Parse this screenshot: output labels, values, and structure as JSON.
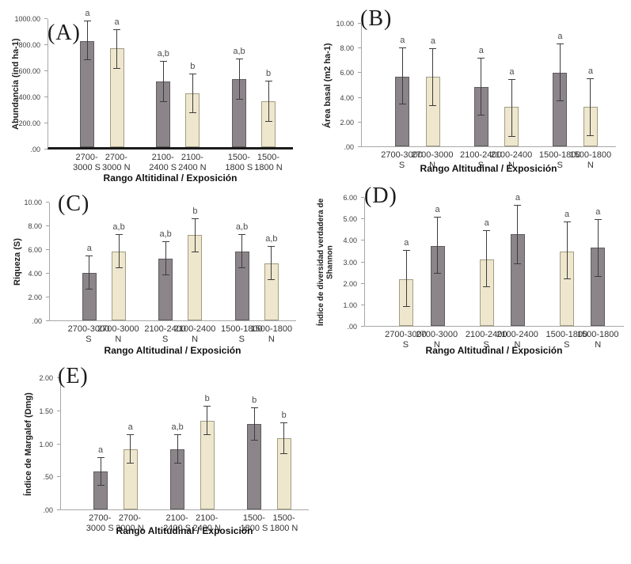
{
  "figure": {
    "background": "#ffffff",
    "panel_count": 5
  },
  "colors": {
    "bar_dark": "#8b858a",
    "bar_dark_border": "#605b5f",
    "bar_cream": "#eee7cd",
    "bar_cream_border": "#a39c83",
    "error_bar": "#3c3c3c",
    "sig_letter": "#4d4d4d",
    "axis": "#a8a8a8",
    "axis_thick": "#1a1a1a"
  },
  "chart_data": [
    {
      "type": "bar",
      "panel": "(A)",
      "ylabel": "Abundancia (ind ha-1)",
      "xlabel": "Rango Altitidinal / Exposición",
      "ylim": [
        0,
        1000
      ],
      "grid": false,
      "legend": null,
      "yticks": [
        {
          "value": 1000,
          "label": "1000.00"
        },
        {
          "value": 800,
          "label": "800.00"
        },
        {
          "value": 600,
          "label": "600.00"
        },
        {
          "value": 400,
          "label": "400.00"
        },
        {
          "value": 200,
          "label": "200.00"
        },
        {
          "value": 0,
          "label": ".00"
        }
      ],
      "bars": [
        {
          "category": "2700-3000 S",
          "label_lines": [
            "2700-",
            "3000 S"
          ],
          "value": 830,
          "err_low": 680,
          "err_high": 990,
          "letter": "a",
          "shade": "dark"
        },
        {
          "category": "2700-3000 N",
          "label_lines": [
            "2700-",
            "3000 N"
          ],
          "value": 770,
          "err_low": 610,
          "err_high": 920,
          "letter": "a",
          "shade": "cream"
        },
        {
          "category": "2100-2400 S",
          "label_lines": [
            "2100-",
            "2400 S"
          ],
          "value": 510,
          "err_low": 355,
          "err_high": 670,
          "letter": "a,b",
          "shade": "dark"
        },
        {
          "category": "2100-2400 N",
          "label_lines": [
            "2100-",
            "2400 N"
          ],
          "value": 420,
          "err_low": 265,
          "err_high": 575,
          "letter": "b",
          "shade": "cream"
        },
        {
          "category": "1500-1800 S",
          "label_lines": [
            "1500-",
            "1800 S"
          ],
          "value": 530,
          "err_low": 370,
          "err_high": 690,
          "letter": "a,b",
          "shade": "dark"
        },
        {
          "category": "1500-1800 N",
          "label_lines": [
            "1500-",
            "1800 N"
          ],
          "value": 360,
          "err_low": 200,
          "err_high": 520,
          "letter": "b",
          "shade": "cream"
        }
      ]
    },
    {
      "type": "bar",
      "panel": "(B)",
      "ylabel": "Área basal (m2 ha-1)",
      "xlabel": "Rango Altitudinal / Exposición",
      "ylim": [
        0,
        10
      ],
      "grid": false,
      "legend": null,
      "yticks": [
        {
          "value": 10,
          "label": "10.00"
        },
        {
          "value": 8,
          "label": "8.00"
        },
        {
          "value": 6,
          "label": "6.00"
        },
        {
          "value": 4,
          "label": "4.00"
        },
        {
          "value": 2,
          "label": "2.00"
        },
        {
          "value": 0,
          "label": ".00"
        }
      ],
      "bars": [
        {
          "category": "2700-3000 S",
          "label_lines": [
            "2700-3000",
            "S"
          ],
          "value": 5.7,
          "err_low": 3.4,
          "err_high": 8.05,
          "letter": "a",
          "shade": "dark"
        },
        {
          "category": "2700-3000 N",
          "label_lines": [
            "2700-3000",
            "N"
          ],
          "value": 5.65,
          "err_low": 3.3,
          "err_high": 8.0,
          "letter": "a",
          "shade": "cream"
        },
        {
          "category": "2100-2400 S",
          "label_lines": [
            "2100-2400",
            "S"
          ],
          "value": 4.85,
          "err_low": 2.5,
          "err_high": 7.2,
          "letter": "a",
          "shade": "dark"
        },
        {
          "category": "2100-2400 N",
          "label_lines": [
            "2100-2400",
            "N"
          ],
          "value": 3.2,
          "err_low": 0.8,
          "err_high": 5.5,
          "letter": "a",
          "shade": "cream"
        },
        {
          "category": "1500-1800 S",
          "label_lines": [
            "1500-1800",
            "S"
          ],
          "value": 6.0,
          "err_low": 3.65,
          "err_high": 8.4,
          "letter": "a",
          "shade": "dark"
        },
        {
          "category": "1500-1800 N",
          "label_lines": [
            "1500-1800",
            "N"
          ],
          "value": 3.25,
          "err_low": 0.85,
          "err_high": 5.55,
          "letter": "a",
          "shade": "cream"
        }
      ]
    },
    {
      "type": "bar",
      "panel": "(C)",
      "ylabel": "Riqueza (S)",
      "xlabel": "Rango Altitudinal / Exposición",
      "ylim": [
        0,
        10
      ],
      "grid": false,
      "legend": null,
      "yticks": [
        {
          "value": 10,
          "label": "10.00"
        },
        {
          "value": 8,
          "label": "8.00"
        },
        {
          "value": 6,
          "label": "6.00"
        },
        {
          "value": 4,
          "label": "4.00"
        },
        {
          "value": 2,
          "label": "2.00"
        },
        {
          "value": 0,
          "label": ".00"
        }
      ],
      "bars": [
        {
          "category": "2700-3000 S",
          "label_lines": [
            "2700-3000",
            "S"
          ],
          "value": 4.05,
          "err_low": 2.6,
          "err_high": 5.5,
          "letter": "a",
          "shade": "dark"
        },
        {
          "category": "2700-3000 N",
          "label_lines": [
            "2700-3000",
            "N"
          ],
          "value": 5.85,
          "err_low": 4.4,
          "err_high": 7.3,
          "letter": "a,b",
          "shade": "cream"
        },
        {
          "category": "2100-2400 S",
          "label_lines": [
            "2100-2400",
            "S"
          ],
          "value": 5.25,
          "err_low": 3.8,
          "err_high": 6.7,
          "letter": "a,b",
          "shade": "dark"
        },
        {
          "category": "2100-2400 N",
          "label_lines": [
            "2100-2400",
            "N"
          ],
          "value": 7.25,
          "err_low": 5.8,
          "err_high": 8.65,
          "letter": "b",
          "shade": "cream"
        },
        {
          "category": "1500-1800 S",
          "label_lines": [
            "1500-1800",
            "S"
          ],
          "value": 5.85,
          "err_low": 4.4,
          "err_high": 7.3,
          "letter": "a,b",
          "shade": "dark"
        },
        {
          "category": "1500-1800 N",
          "label_lines": [
            "1500-1800",
            "N"
          ],
          "value": 4.85,
          "err_low": 3.4,
          "err_high": 6.3,
          "letter": "a,b",
          "shade": "cream"
        }
      ]
    },
    {
      "type": "bar",
      "panel": "(D)",
      "ylabel": "Índice de diversidad verdadera de Shannon",
      "xlabel": "Rango Altitudinal / Exposición",
      "ylim": [
        0,
        6
      ],
      "grid": false,
      "legend": null,
      "yticks": [
        {
          "value": 6,
          "label": "6.00"
        },
        {
          "value": 5,
          "label": "5.00"
        },
        {
          "value": 4,
          "label": "4.00"
        },
        {
          "value": 3,
          "label": "3.00"
        },
        {
          "value": 2,
          "label": "2.00"
        },
        {
          "value": 1,
          "label": "1.00"
        },
        {
          "value": 0,
          "label": ".00"
        }
      ],
      "bars": [
        {
          "category": "2700-3000 S",
          "label_lines": [
            "2700-3000",
            "S"
          ],
          "value": 2.2,
          "err_low": 0.9,
          "err_high": 3.55,
          "letter": "a",
          "shade": "cream"
        },
        {
          "category": "2700-3000 N",
          "label_lines": [
            "2700-3000",
            "N"
          ],
          "value": 3.75,
          "err_low": 2.45,
          "err_high": 5.1,
          "letter": "a",
          "shade": "dark"
        },
        {
          "category": "2100-2400 S",
          "label_lines": [
            "2100-2400",
            "S"
          ],
          "value": 3.1,
          "err_low": 1.8,
          "err_high": 4.5,
          "letter": "a",
          "shade": "cream"
        },
        {
          "category": "2100-2400 N",
          "label_lines": [
            "2100-2400",
            "N"
          ],
          "value": 4.3,
          "err_low": 2.9,
          "err_high": 5.65,
          "letter": "a",
          "shade": "dark"
        },
        {
          "category": "1500-1800 S",
          "label_lines": [
            "1500-1800",
            "S"
          ],
          "value": 3.5,
          "err_low": 2.2,
          "err_high": 4.9,
          "letter": "a",
          "shade": "cream"
        },
        {
          "category": "1500-1800 N",
          "label_lines": [
            "1500-1800",
            "N"
          ],
          "value": 3.65,
          "err_low": 2.3,
          "err_high": 5.0,
          "letter": "a",
          "shade": "dark"
        }
      ]
    },
    {
      "type": "bar",
      "panel": "(E)",
      "ylabel": "Índice de Margalef (Dmg)",
      "xlabel": "Rango Altitudinal / Exposición",
      "ylim": [
        0,
        2
      ],
      "grid": false,
      "legend": null,
      "yticks": [
        {
          "value": 2,
          "label": "2.00"
        },
        {
          "value": 1.5,
          "label": "1.50"
        },
        {
          "value": 1,
          "label": "1.00"
        },
        {
          "value": 0.5,
          "label": ".50"
        },
        {
          "value": 0,
          "label": ".00"
        }
      ],
      "bars": [
        {
          "category": "2700-3000 S",
          "label_lines": [
            "2700-",
            "3000 S"
          ],
          "value": 0.58,
          "err_low": 0.36,
          "err_high": 0.8,
          "letter": "a",
          "shade": "dark"
        },
        {
          "category": "2700-3000 N",
          "label_lines": [
            "2700-",
            "3000 N"
          ],
          "value": 0.92,
          "err_low": 0.7,
          "err_high": 1.14,
          "letter": "a",
          "shade": "cream"
        },
        {
          "category": "2100-2400 S",
          "label_lines": [
            "2100-",
            "2400 S"
          ],
          "value": 0.92,
          "err_low": 0.7,
          "err_high": 1.15,
          "letter": "a,b",
          "shade": "dark"
        },
        {
          "category": "2100-2400 N",
          "label_lines": [
            "2100-",
            "2400 N"
          ],
          "value": 1.35,
          "err_low": 1.13,
          "err_high": 1.58,
          "letter": "b",
          "shade": "cream"
        },
        {
          "category": "1500-1800 S",
          "label_lines": [
            "1500-",
            "1800 S"
          ],
          "value": 1.3,
          "err_low": 1.05,
          "err_high": 1.55,
          "letter": "b",
          "shade": "dark"
        },
        {
          "category": "1500-1800 N",
          "label_lines": [
            "1500-",
            "1800 N"
          ],
          "value": 1.08,
          "err_low": 0.84,
          "err_high": 1.33,
          "letter": "b",
          "shade": "cream"
        }
      ]
    }
  ]
}
